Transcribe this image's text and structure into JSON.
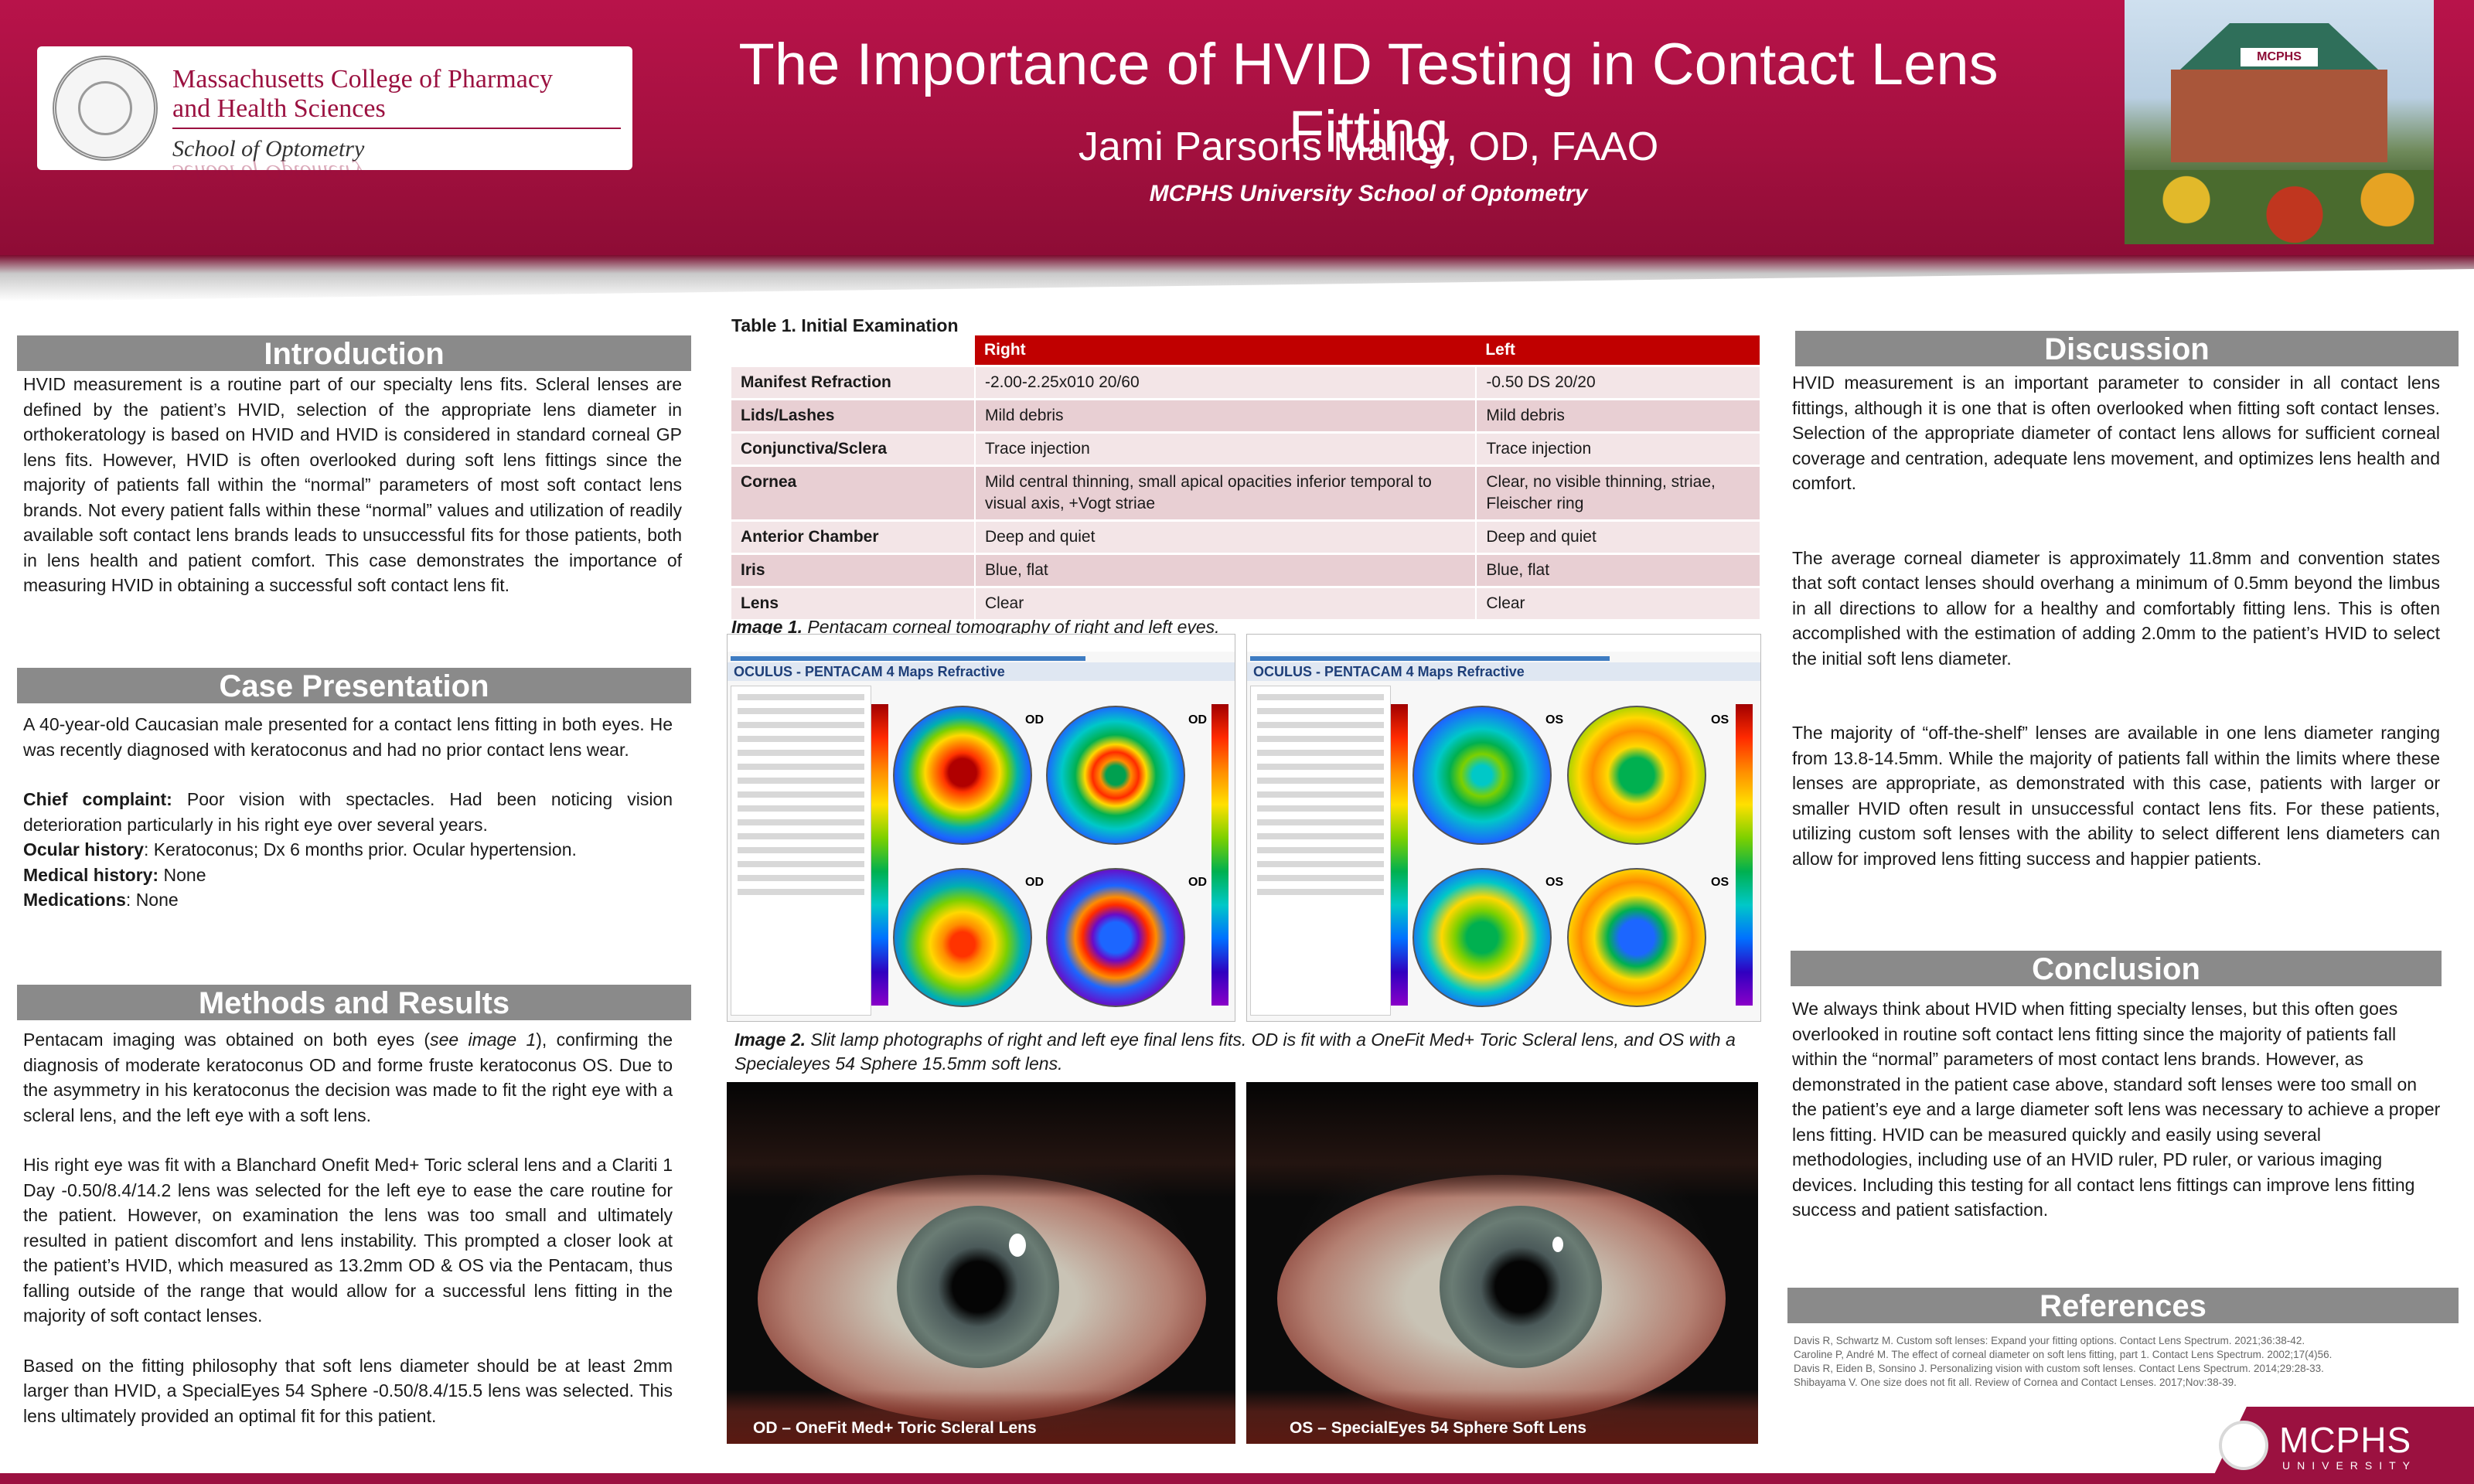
{
  "header": {
    "title": "The Importance of HVID Testing in Contact Lens Fitting",
    "author": "Jami Parsons Malloy, OD, FAAO",
    "affiliation": "MCPHS University School of Optometry",
    "logo_line1": "Massachusetts College of Pharmacy",
    "logo_line2": "and Health Sciences",
    "logo_school": "School of Optometry",
    "building_sign": "MCPHS"
  },
  "introduction": {
    "heading": "Introduction",
    "text": "HVID measurement is a routine part of our specialty lens fits.  Scleral lenses are defined by the patient’s HVID, selection of the appropriate lens diameter in orthokeratology is based on HVID and HVID is considered in standard corneal GP lens fits.  However, HVID is often overlooked during soft lens fittings since the majority of patients fall within the “normal” parameters of most soft contact lens brands.  Not every patient falls within these “normal” values and utilization of readily available soft contact lens brands leads to unsuccessful fits for those patients, both in lens health and patient comfort.  This case demonstrates the importance of measuring HVID in obtaining a successful soft contact lens fit."
  },
  "case": {
    "heading": "Case Presentation",
    "intro": "A 40-year-old Caucasian male presented for a contact lens fitting in both eyes. He was recently diagnosed with keratoconus and had no prior contact lens wear.",
    "complaint_label": "Chief complaint:",
    "complaint": " Poor vision with spectacles.   Had been noticing vision deterioration particularly in his right eye over several years.",
    "ocular_label": "Ocular history",
    "ocular": ": Keratoconus; Dx 6 months prior.  Ocular hypertension.",
    "medical_label": "Medical history:",
    "medical": " None",
    "medications_label": "Medications",
    "medications": ": None"
  },
  "methods": {
    "heading": "Methods and Results",
    "p1_a": "Pentacam imaging was obtained on both eyes (",
    "p1_em": "see image 1",
    "p1_b": "), confirming the diagnosis of moderate keratoconus OD and forme fruste keratoconus OS. Due to the asymmetry in his keratoconus the decision was made to fit the right eye with a  scleral lens, and the left eye with a soft lens.",
    "p2": "His right eye was fit with a Blanchard Onefit Med+ Toric scleral lens and a Clariti 1 Day -0.50/8.4/14.2 lens was selected for the left eye to ease the care routine for the patient.  However, on examination the lens was too small and ultimately resulted in patient discomfort and lens instability.  This prompted a closer look at the patient’s HVID, which measured as 13.2mm OD & OS via the Pentacam, thus falling outside of the range that would allow for a successful lens fitting in the majority of soft contact lenses.",
    "p3": "Based on the fitting philosophy that soft lens diameter should be at least 2mm larger than HVID, a SpecialEyes 54 Sphere -0.50/8.4/15.5 lens was selected.  This lens ultimately provided an optimal fit for this patient."
  },
  "table": {
    "caption": "Table 1. Initial Examination",
    "columns": [
      "",
      "Right",
      "Left"
    ],
    "rows": [
      [
        "Manifest Refraction",
        "-2.00-2.25x010   20/60",
        "-0.50 DS   20/20"
      ],
      [
        "Lids/Lashes",
        "Mild debris",
        "Mild debris"
      ],
      [
        "Conjunctiva/Sclera",
        "Trace injection",
        "Trace injection"
      ],
      [
        "Cornea",
        "Mild central thinning, small apical opacities inferior temporal to visual axis, +Vogt striae",
        "Clear, no visible thinning, striae, Fleischer ring"
      ],
      [
        "Anterior Chamber",
        "Deep and quiet",
        "Deep and quiet"
      ],
      [
        "Iris",
        "Blue, flat",
        "Blue, flat"
      ],
      [
        "Lens",
        "Clear",
        "Clear"
      ]
    ]
  },
  "image1": {
    "caption_label": "Image 1.",
    "caption": " Pentacam corneal tomography of right and left eyes.",
    "header": "OCULUS   -   PENTACAM   4 Maps Refractive",
    "od_label": "OD",
    "os_label": "OS"
  },
  "image2": {
    "caption_label": "Image 2.",
    "caption": " Slit lamp photographs of right and left eye final lens fits.  OD is fit with a OneFit Med+ Toric Scleral lens, and OS with a Specialeyes 54 Sphere 15.5mm soft lens.",
    "left_label": "OD – OneFit Med+ Toric Scleral Lens",
    "right_label": "OS – SpecialEyes 54 Sphere Soft Lens"
  },
  "discussion": {
    "heading": "Discussion",
    "p1": "HVID measurement is an important parameter to consider in all contact lens fittings, although it is one that is often overlooked when fitting soft contact lenses.  Selection of the appropriate diameter of contact lens allows for sufficient corneal coverage and centration, adequate lens movement, and optimizes lens health and comfort.",
    "p2": "The average corneal diameter is approximately 11.8mm and convention states that soft contact lenses should overhang a minimum of 0.5mm beyond the limbus in all directions to allow for a healthy and comfortably fitting lens.  This is often accomplished with the estimation of adding 2.0mm to the patient’s HVID to select the initial soft lens diameter.",
    "p3": "The majority of “off-the-shelf” lenses are available in one lens diameter ranging from 13.8-14.5mm.  While the majority of patients fall within the limits where these lenses are appropriate, as demonstrated with this case, patients with larger or smaller HVID often result in unsuccessful contact lens fits.  For these patients, utilizing custom soft lenses with the ability to select different lens diameters can allow for improved lens fitting success and happier patients."
  },
  "conclusion": {
    "heading": "Conclusion",
    "text": "We always think about HVID when fitting specialty lenses, but this often goes overlooked in routine soft contact lens fitting since the majority of patients fall within the “normal” parameters of most contact lens brands.  However, as demonstrated in the patient case above, standard soft lenses were too small on the patient’s eye and a large diameter soft lens was necessary to achieve a proper lens fitting.  HVID can be measured quickly and easily using several methodologies, including use of an HVID ruler, PD ruler, or various imaging devices.  Including this testing for all contact lens fittings can improve lens fitting success and patient satisfaction."
  },
  "references": {
    "heading": "References",
    "items": [
      "Davis R, Schwartz M. Custom soft lenses: Expand your fitting options.  Contact Lens Spectrum. 2021;36:38-42.",
      "Caroline P, André M. The effect of corneal diameter on soft lens fitting, part 1. Contact Lens Spectrum. 2002;17(4)56.",
      "Davis R, Eiden B, Sonsino J. Personalizing vision with custom soft lenses. Contact Lens Spectrum. 2014;29:28-33.",
      "Shibayama V.  One size does not fit all. Review of Cornea and Contact Lenses. 2017;Nov:38-39."
    ]
  },
  "footer": {
    "name": "MCPHS",
    "sub": "UNIVERSITY"
  }
}
